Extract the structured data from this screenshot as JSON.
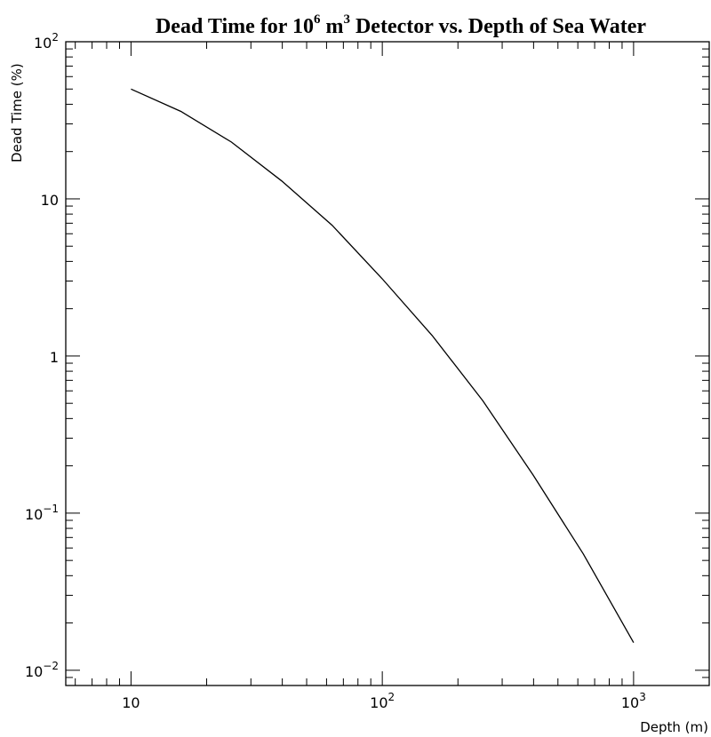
{
  "chart_data": {
    "type": "line",
    "title": {
      "prefix": "Dead Time for 10",
      "sup1": "6",
      "mid": " m",
      "sup2": "3",
      "suffix": " Detector vs. Depth of Sea Water"
    },
    "xlabel": "Depth (m)",
    "ylabel": "Dead Time (%)",
    "xscale": "log",
    "yscale": "log",
    "xlim": [
      5.5,
      2000
    ],
    "ylim": [
      0.008,
      100
    ],
    "x_ticks": [
      {
        "value": 10,
        "label": "10"
      },
      {
        "value": 100,
        "base": "10",
        "exp": "2"
      },
      {
        "value": 1000,
        "base": "10",
        "exp": "3"
      }
    ],
    "y_ticks": [
      {
        "value": 0.01,
        "base": "10",
        "exp": "−2"
      },
      {
        "value": 0.1,
        "base": "10",
        "exp": "−1"
      },
      {
        "value": 1,
        "label": "1"
      },
      {
        "value": 10,
        "label": "10"
      },
      {
        "value": 100,
        "base": "10",
        "exp": "2"
      }
    ],
    "grid": false,
    "series": [
      {
        "x": [
          10,
          15.8,
          25.1,
          39.8,
          63.1,
          100,
          158,
          251,
          398,
          631,
          1000
        ],
        "y": [
          50,
          36,
          23,
          13,
          6.8,
          3.1,
          1.35,
          0.52,
          0.175,
          0.055,
          0.015
        ]
      }
    ]
  }
}
